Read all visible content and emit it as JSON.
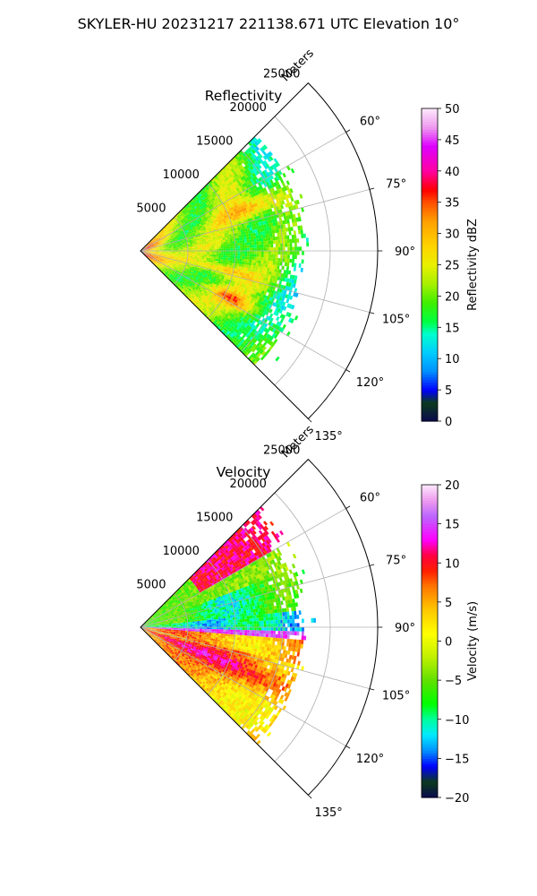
{
  "figure_title": "SKYLER-HU  20231217  221138.671 UTC Elevation 10°",
  "chart_data": [
    {
      "type": "heatmap",
      "subtype": "radar-sector-ppi",
      "title": "Reflectivity",
      "radial_label": "Meters",
      "radial_ticks": [
        5000,
        10000,
        15000,
        20000,
        25000
      ],
      "radial_tick_labels": [
        "5000",
        "10000",
        "15000",
        "20000",
        "25000"
      ],
      "angle_ticks": [
        60,
        75,
        90,
        105,
        120,
        135
      ],
      "angle_tick_labels": [
        "60°",
        "75°",
        "90°",
        "105°",
        "120°",
        "135°"
      ],
      "angle_range": [
        45,
        135
      ],
      "range_limit": 25000,
      "data_max_range": 17000,
      "grid": true,
      "colorbar": {
        "label": "Reflectivity dBZ",
        "range": [
          0,
          50
        ],
        "ticks": [
          0,
          5,
          10,
          15,
          20,
          25,
          30,
          35,
          40,
          45,
          50
        ],
        "tick_labels": [
          "0",
          "5",
          "10",
          "15",
          "20",
          "25",
          "30",
          "35",
          "40",
          "45",
          "50"
        ],
        "colormap": [
          [
            0,
            "#0a0a50"
          ],
          [
            3,
            "#0c3a1c"
          ],
          [
            5,
            "#0000ff"
          ],
          [
            8,
            "#0090ff"
          ],
          [
            11,
            "#00ccff"
          ],
          [
            14,
            "#00ffcc"
          ],
          [
            16,
            "#00ff40"
          ],
          [
            19,
            "#40ee00"
          ],
          [
            22,
            "#a8f000"
          ],
          [
            25,
            "#e8f000"
          ],
          [
            28,
            "#ffd400"
          ],
          [
            32,
            "#ffa000"
          ],
          [
            35,
            "#ff5000"
          ],
          [
            37,
            "#ff0000"
          ],
          [
            40,
            "#ff00a0"
          ],
          [
            44,
            "#dd00ff"
          ],
          [
            47,
            "#ee99ee"
          ],
          [
            50,
            "#fce8fc"
          ]
        ]
      }
    },
    {
      "type": "heatmap",
      "subtype": "radar-sector-ppi",
      "title": "Velocity",
      "radial_label": "Meters",
      "radial_ticks": [
        5000,
        10000,
        15000,
        20000,
        25000
      ],
      "radial_tick_labels": [
        "5000",
        "10000",
        "15000",
        "20000",
        "25000"
      ],
      "angle_ticks": [
        60,
        75,
        90,
        105,
        120,
        135
      ],
      "angle_tick_labels": [
        "60°",
        "75°",
        "90°",
        "105°",
        "120°",
        "135°"
      ],
      "angle_range": [
        45,
        135
      ],
      "range_limit": 25000,
      "data_max_range": 17000,
      "grid": true,
      "colorbar": {
        "label": "Velocity (m/s)",
        "range": [
          -20,
          20
        ],
        "ticks": [
          -20,
          -15,
          -10,
          -5,
          0,
          5,
          10,
          15,
          20
        ],
        "tick_labels": [
          "−20",
          "−15",
          "−10",
          "−5",
          "0",
          "5",
          "10",
          "15",
          "20"
        ],
        "colormap": [
          [
            -20,
            "#0a0a50"
          ],
          [
            -18,
            "#0c3a1c"
          ],
          [
            -16,
            "#0000ff"
          ],
          [
            -14,
            "#0090ff"
          ],
          [
            -12,
            "#00e8ff"
          ],
          [
            -10,
            "#00ffa0"
          ],
          [
            -8,
            "#00ff00"
          ],
          [
            -5,
            "#60e000"
          ],
          [
            -2,
            "#c0f000"
          ],
          [
            1,
            "#ffff00"
          ],
          [
            4,
            "#ffc800"
          ],
          [
            7,
            "#ff7800"
          ],
          [
            9,
            "#ff2000"
          ],
          [
            11,
            "#ff0040"
          ],
          [
            13,
            "#ff00ff"
          ],
          [
            16,
            "#bb66ff"
          ],
          [
            18,
            "#ee99ee"
          ],
          [
            20,
            "#fce8fc"
          ]
        ]
      }
    }
  ]
}
